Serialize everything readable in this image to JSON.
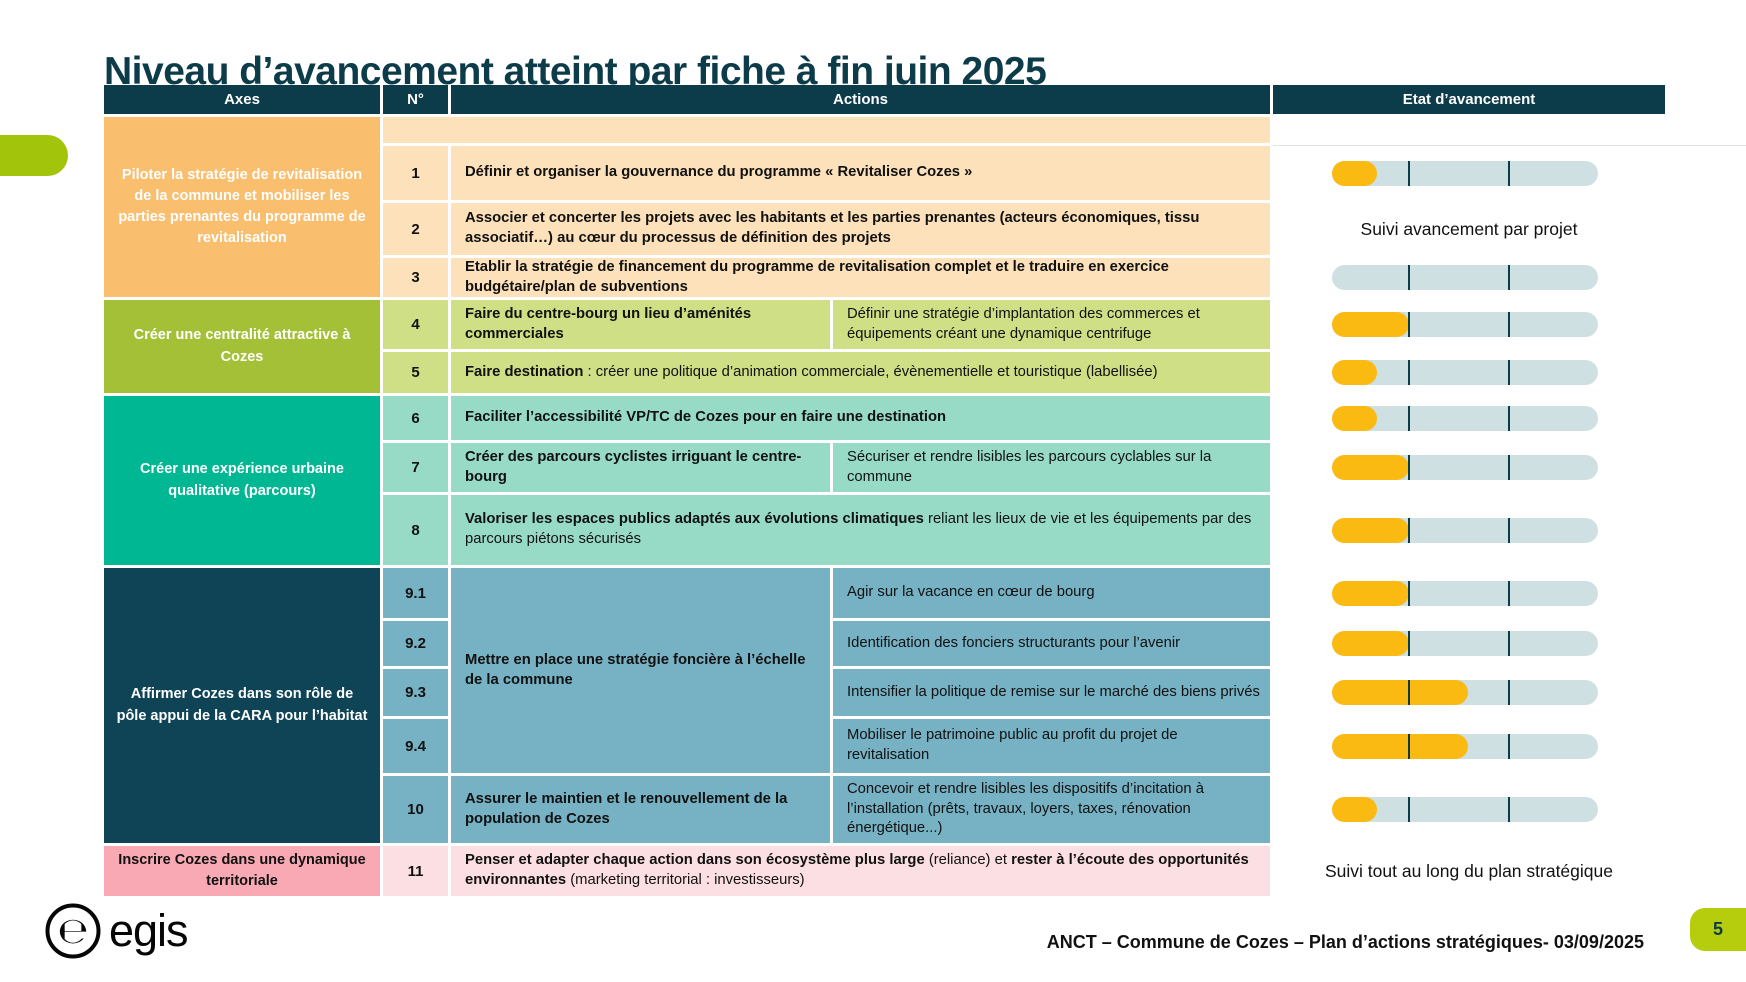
{
  "title": "Niveau d’avancement atteint par fiche à fin juin 2025",
  "colors": {
    "dark": "#0c3b4a",
    "orange_axis": "#f9be6e",
    "orange_row": "#fce1ba",
    "green_axis": "#a3c037",
    "green_row": "#cfdf85",
    "teal_axis": "#00b794",
    "teal_row": "#97dbc7",
    "blue_axis": "#0e4456",
    "blue_row": "#76b2c4",
    "pink_axis": "#f8a9b4",
    "pink_row": "#fcdfe2",
    "bar_track": "#cfe0e3",
    "bar_fill": "#fbba12",
    "accent_lime": "#a2c40a",
    "page_badge": "#b5cd0c"
  },
  "header": {
    "axes": "Axes",
    "num": "N°",
    "actions": "Actions",
    "etat": "Etat d’avancement"
  },
  "groups": [
    {
      "axis": "Piloter la stratégie de revitalisation de la commune et mobiliser les parties prenantes du programme de revitalisation"
    },
    {
      "axis": "Créer une centralité attractive à Cozes"
    },
    {
      "axis": "Créer une expérience urbaine qualitative (parcours)"
    },
    {
      "axis": "Affirmer Cozes dans son rôle de pôle appui de la CARA pour l’habitat"
    },
    {
      "axis": "Inscrire Cozes dans une dynamique territoriale"
    }
  ],
  "rows": {
    "r1": {
      "num": "1",
      "bold": "Définir et organiser la gouvernance du programme « Revitaliser Cozes »"
    },
    "r2": {
      "num": "2",
      "bold": "Associer et concerter les projets avec les habitants et les parties prenantes (acteurs économiques, tissu associatif…) au cœur du processus de définition des projets"
    },
    "r3": {
      "num": "3",
      "bold": "Etablir la stratégie de financement du programme de revitalisation complet et le traduire en exercice budgétaire/plan de subventions"
    },
    "r4": {
      "num": "4",
      "bold": "Faire du centre-bourg un lieu d’aménités commerciales",
      "sub": "Définir une stratégie d’implantation des commerces et équipements créant une dynamique centrifuge"
    },
    "r5": {
      "num": "5",
      "bold": "Faire destination",
      "rest": " : créer une politique d’animation commerciale, évènementielle et touristique (labellisée)"
    },
    "r6": {
      "num": "6",
      "bold": "Faciliter l’accessibilité VP/TC de Cozes pour en faire une destination"
    },
    "r7": {
      "num": "7",
      "bold": "Créer des parcours cyclistes irriguant le centre-bourg",
      "sub": "Sécuriser et rendre lisibles les parcours cyclables sur la commune"
    },
    "r8": {
      "num": "8",
      "bold": "Valoriser les espaces publics adaptés aux évolutions climatiques",
      "rest": " reliant les lieux de vie et les équipements par des parcours piétons sécurisés"
    },
    "r9": {
      "merged_bold": "Mettre en place une stratégie foncière à l’échelle de la commune"
    },
    "r91": {
      "num": "9.1",
      "sub": "Agir sur la vacance en cœur de bourg"
    },
    "r92": {
      "num": "9.2",
      "sub": "Identification des fonciers structurants pour l’avenir"
    },
    "r93": {
      "num": "9.3",
      "sub": "Intensifier la politique de remise sur le marché des biens privés"
    },
    "r94": {
      "num": "9.4",
      "sub": "Mobiliser le patrimoine public au profit du projet de revitalisation"
    },
    "r10": {
      "num": "10",
      "bold": "Assurer le maintien et le renouvellement de la population de Cozes",
      "sub": "Concevoir et rendre lisibles les dispositifs d’incitation à l’installation (prêts, travaux, loyers, taxes, rénovation énergétique...)"
    },
    "r11": {
      "num": "11",
      "bold": "Penser et adapter chaque action dans son écosystème plus large",
      "rest": " (reliance) et ",
      "bold2": "rester à l’écoute des opportunités environnantes",
      "rest2": " (marketing territorial : investisseurs)"
    }
  },
  "etat": {
    "suivi_projet": "Suivi avancement par projet",
    "suivi_plan": "Suivi tout au long du plan stratégique",
    "bars": {
      "r1": 17,
      "r3": 0,
      "r4": 29,
      "r5": 17,
      "r6": 17,
      "r7": 29,
      "r8": 29,
      "r91": 29,
      "r92": 29,
      "r93": 51,
      "r94": 51,
      "r10": 17
    }
  },
  "footer": {
    "brand": "egis",
    "caption": "ANCT – Commune de Cozes – Plan d’actions stratégiques- 03/09/2025",
    "page_number": "5"
  }
}
